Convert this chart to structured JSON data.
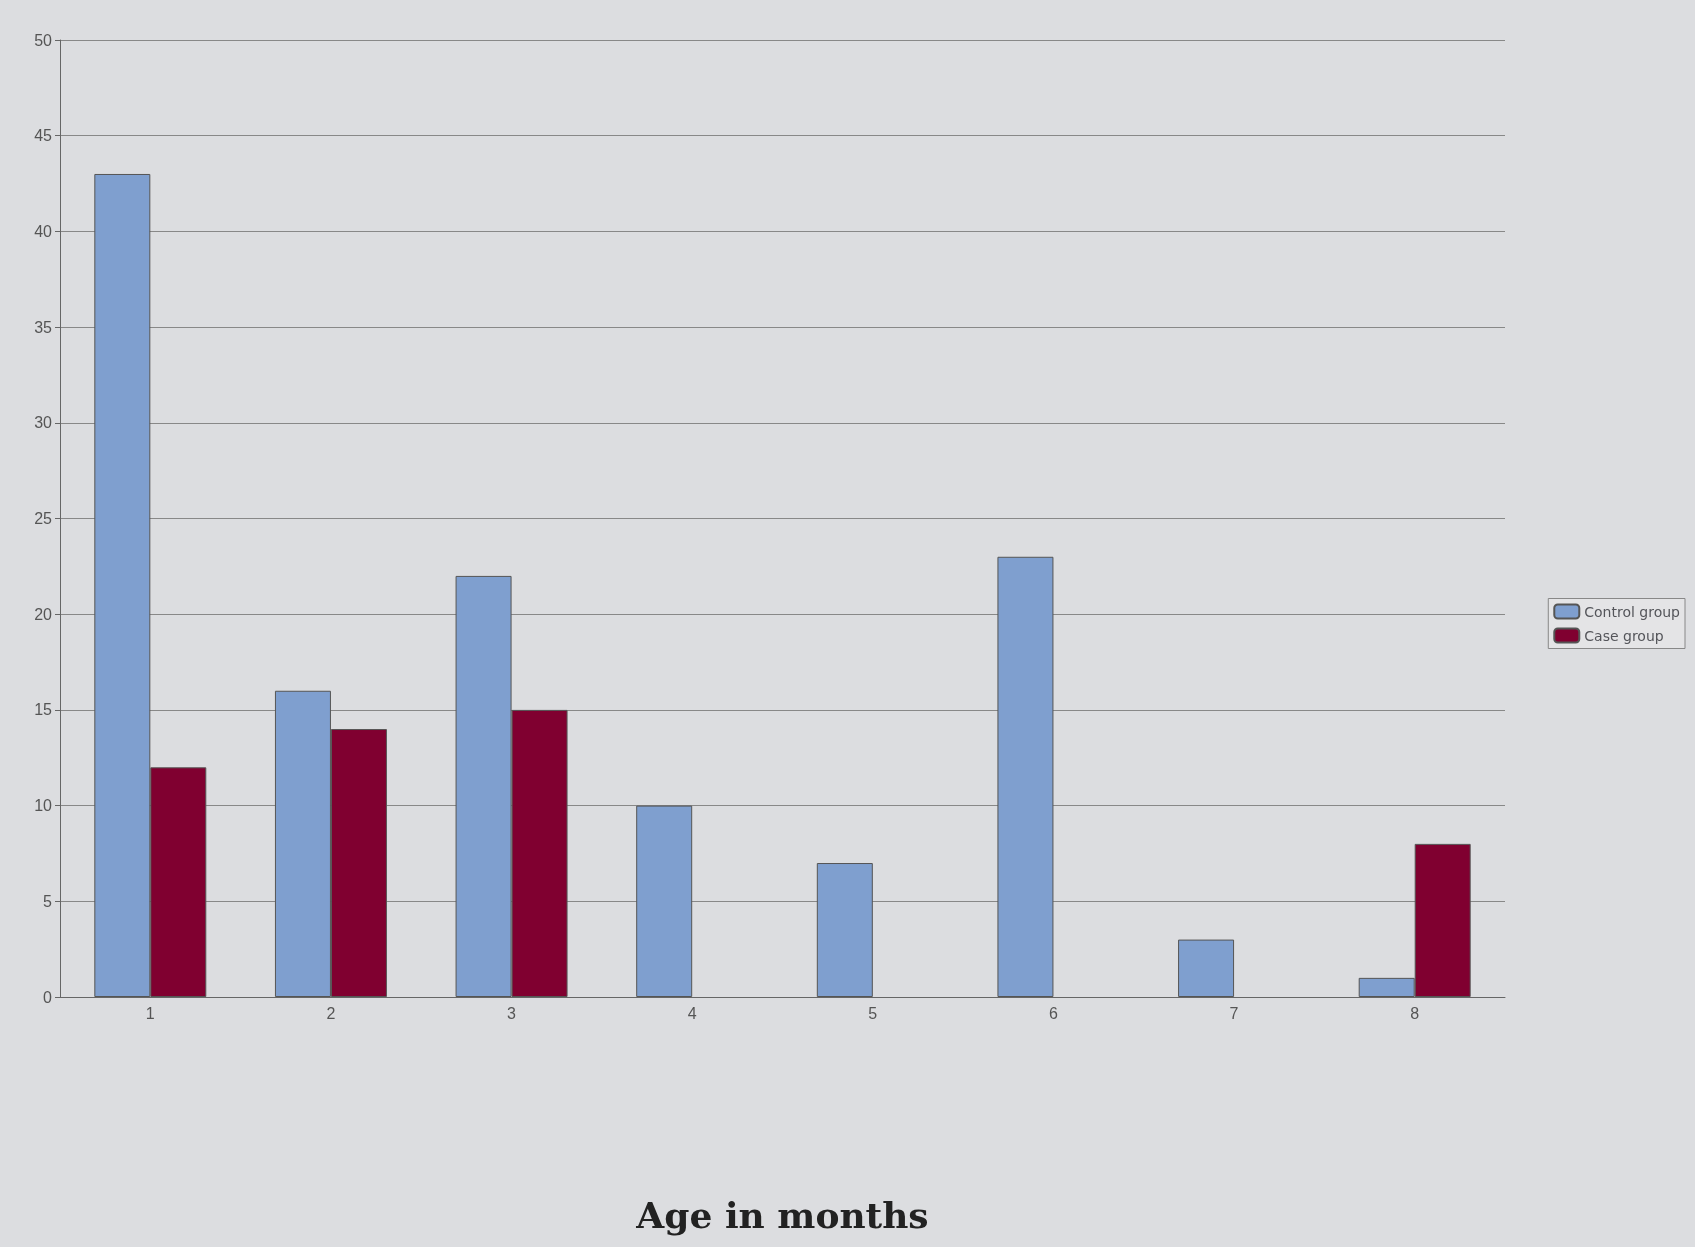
{
  "chart_data": {
    "type": "bar",
    "xlabel": "Age in months",
    "categories": [
      "1",
      "2",
      "3",
      "4",
      "5",
      "6",
      "7",
      "8"
    ],
    "series": [
      {
        "name": "Control group",
        "color": "#7f9fcf",
        "values": [
          43,
          16,
          22,
          10,
          7,
          23,
          3,
          1
        ]
      },
      {
        "name": "Case group",
        "color": "#800030",
        "values": [
          12,
          14,
          15,
          null,
          null,
          null,
          null,
          8
        ]
      }
    ],
    "ylim": [
      0,
      50
    ],
    "yticks": [
      0,
      5,
      10,
      15,
      20,
      25,
      30,
      35,
      40,
      45,
      50
    ],
    "grid": "y",
    "legend": "right"
  }
}
